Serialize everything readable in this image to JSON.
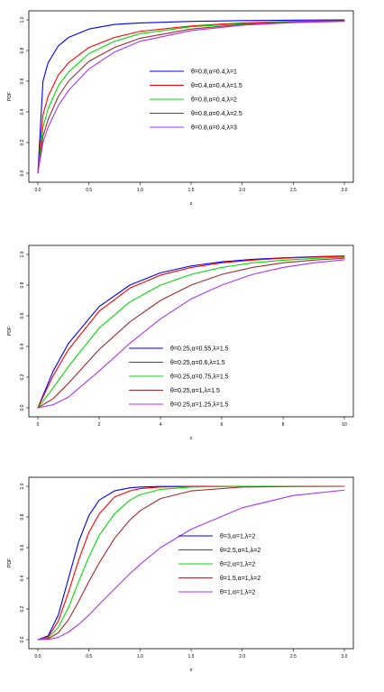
{
  "chart_data": [
    {
      "type": "line",
      "title": "",
      "xlabel": "z",
      "ylabel": "PDF",
      "xlim": [
        0,
        3
      ],
      "ylim": [
        0,
        1
      ],
      "xticks": [
        "0.0",
        "0.5",
        "1.0",
        "1.5",
        "2.0",
        "2.5",
        "3.0"
      ],
      "yticks": [
        "0.0",
        "0.2",
        "0.4",
        "0.6",
        "0.8",
        "1.0"
      ],
      "legend_position": "center-right",
      "series": [
        {
          "name": "θ=0.8,α=0.4,λ=1",
          "color": "#0000ff",
          "x": [
            0,
            0.05,
            0.1,
            0.2,
            0.3,
            0.5,
            0.75,
            1.0,
            1.5,
            2.0,
            2.5,
            3.0
          ],
          "y": [
            0,
            0.6,
            0.72,
            0.83,
            0.885,
            0.94,
            0.97,
            0.98,
            0.99,
            0.995,
            0.998,
            1.0
          ]
        },
        {
          "name": "θ=0.4,α=0.4,λ=1.5",
          "color": "#ff0000",
          "x": [
            0,
            0.05,
            0.1,
            0.2,
            0.3,
            0.5,
            0.75,
            1.0,
            1.5,
            2.0,
            2.5,
            3.0
          ],
          "y": [
            0,
            0.38,
            0.5,
            0.64,
            0.72,
            0.82,
            0.885,
            0.925,
            0.96,
            0.98,
            0.99,
            0.995
          ]
        },
        {
          "name": "θ=0.8,α=0.4,λ=2",
          "color": "#00dd00",
          "x": [
            0,
            0.05,
            0.1,
            0.2,
            0.3,
            0.5,
            0.75,
            1.0,
            1.5,
            2.0,
            2.5,
            3.0
          ],
          "y": [
            0,
            0.3,
            0.42,
            0.57,
            0.66,
            0.78,
            0.86,
            0.91,
            0.955,
            0.975,
            0.988,
            0.994
          ]
        },
        {
          "name": "θ=0.8,α=0.4,λ=2.5",
          "color": "#a52a2a",
          "x": [
            0,
            0.05,
            0.1,
            0.2,
            0.3,
            0.5,
            0.75,
            1.0,
            1.5,
            2.0,
            2.5,
            3.0
          ],
          "y": [
            0,
            0.24,
            0.35,
            0.5,
            0.6,
            0.73,
            0.82,
            0.88,
            0.94,
            0.97,
            0.985,
            0.993
          ]
        },
        {
          "name": "θ=0.8,α=0.4,λ=3",
          "color": "#aa33ff",
          "x": [
            0,
            0.05,
            0.1,
            0.2,
            0.3,
            0.5,
            0.75,
            1.0,
            1.5,
            2.0,
            2.5,
            3.0
          ],
          "y": [
            0,
            0.2,
            0.3,
            0.44,
            0.54,
            0.68,
            0.79,
            0.86,
            0.93,
            0.965,
            0.982,
            0.99
          ]
        }
      ]
    },
    {
      "type": "line",
      "title": "",
      "xlabel": "z",
      "ylabel": "PDF",
      "xlim": [
        0,
        10
      ],
      "ylim": [
        0,
        1
      ],
      "xticks": [
        "0",
        "2",
        "4",
        "6",
        "8",
        "10"
      ],
      "yticks": [
        "0.0",
        "0.2",
        "0.4",
        "0.6",
        "0.8",
        "1.0"
      ],
      "legend_position": "bottom-center",
      "series": [
        {
          "name": "θ=0.25,α=0.55,λ=1.5",
          "color": "#0000ff",
          "x": [
            0,
            0.5,
            1,
            2,
            3,
            4,
            5,
            6,
            7,
            8,
            9,
            10
          ],
          "y": [
            0,
            0.24,
            0.42,
            0.66,
            0.8,
            0.88,
            0.925,
            0.952,
            0.968,
            0.978,
            0.985,
            0.99
          ]
        },
        {
          "name": "θ=0.25,α=0.6,λ=1.5",
          "color": "#ff0000",
          "x": [
            0,
            0.5,
            1,
            2,
            3,
            4,
            5,
            6,
            7,
            8,
            9,
            10
          ],
          "y": [
            0,
            0.21,
            0.38,
            0.63,
            0.78,
            0.865,
            0.915,
            0.945,
            0.963,
            0.975,
            0.983,
            0.988
          ]
        },
        {
          "name": "θ=0.25,α=0.75,λ=1.5",
          "color": "#00dd00",
          "x": [
            0,
            0.5,
            1,
            2,
            3,
            4,
            5,
            6,
            7,
            8,
            9,
            10
          ],
          "y": [
            0,
            0.13,
            0.27,
            0.52,
            0.69,
            0.8,
            0.87,
            0.915,
            0.945,
            0.962,
            0.974,
            0.982
          ]
        },
        {
          "name": "θ=0.25,α=1,λ=1.5",
          "color": "#a52a2a",
          "x": [
            0,
            0.5,
            1,
            2,
            3,
            4,
            5,
            6,
            7,
            8,
            9,
            10
          ],
          "y": [
            0,
            0.06,
            0.16,
            0.38,
            0.56,
            0.7,
            0.8,
            0.87,
            0.915,
            0.945,
            0.963,
            0.975
          ]
        },
        {
          "name": "θ=0.25,α=1.25,λ=1.5",
          "color": "#aa33ff",
          "x": [
            0,
            0.5,
            1,
            2,
            3,
            4,
            5,
            6,
            7,
            8,
            9,
            10
          ],
          "y": [
            0,
            0.02,
            0.07,
            0.24,
            0.42,
            0.58,
            0.71,
            0.8,
            0.87,
            0.915,
            0.945,
            0.965
          ]
        }
      ]
    },
    {
      "type": "line",
      "title": "",
      "xlabel": "z",
      "ylabel": "PDF",
      "xlim": [
        0,
        3
      ],
      "ylim": [
        0,
        1
      ],
      "xticks": [
        "0.0",
        "0.5",
        "1.0",
        "1.5",
        "2.0",
        "2.5",
        "3.0"
      ],
      "yticks": [
        "0.0",
        "0.2",
        "0.4",
        "0.6",
        "0.8",
        "1.0"
      ],
      "legend_position": "center-right",
      "series": [
        {
          "name": "θ=3,α=1,λ=2",
          "color": "#0000ff",
          "x": [
            0,
            0.1,
            0.2,
            0.3,
            0.4,
            0.5,
            0.6,
            0.75,
            0.9,
            1.0,
            1.2,
            1.5,
            2.0,
            2.5,
            3.0
          ],
          "y": [
            0,
            0.025,
            0.16,
            0.4,
            0.64,
            0.81,
            0.91,
            0.97,
            0.99,
            0.995,
            0.999,
            1.0,
            1.0,
            1.0,
            1.0
          ]
        },
        {
          "name": "θ=2.5,α=1,λ=2",
          "color": "#ff0000",
          "x": [
            0,
            0.1,
            0.2,
            0.3,
            0.4,
            0.5,
            0.6,
            0.75,
            0.9,
            1.0,
            1.2,
            1.5,
            2.0,
            2.5,
            3.0
          ],
          "y": [
            0,
            0.018,
            0.12,
            0.31,
            0.52,
            0.7,
            0.82,
            0.93,
            0.97,
            0.985,
            0.995,
            0.999,
            1.0,
            1.0,
            1.0
          ]
        },
        {
          "name": "θ=2,α=1,λ=2",
          "color": "#00dd00",
          "x": [
            0,
            0.1,
            0.2,
            0.3,
            0.4,
            0.5,
            0.6,
            0.75,
            0.9,
            1.0,
            1.2,
            1.5,
            2.0,
            2.5,
            3.0
          ],
          "y": [
            0,
            0.012,
            0.08,
            0.21,
            0.38,
            0.54,
            0.68,
            0.82,
            0.91,
            0.945,
            0.98,
            0.995,
            1.0,
            1.0,
            1.0
          ]
        },
        {
          "name": "θ=1.5,α=1,λ=2",
          "color": "#a52a2a",
          "x": [
            0,
            0.1,
            0.2,
            0.3,
            0.4,
            0.5,
            0.6,
            0.75,
            0.9,
            1.0,
            1.2,
            1.5,
            2.0,
            2.5,
            3.0
          ],
          "y": [
            0,
            0.006,
            0.045,
            0.13,
            0.25,
            0.38,
            0.5,
            0.66,
            0.78,
            0.84,
            0.92,
            0.97,
            0.995,
            0.999,
            1.0
          ]
        },
        {
          "name": "θ=1,α=1,λ=2",
          "color": "#aa33ff",
          "x": [
            0,
            0.1,
            0.2,
            0.3,
            0.4,
            0.5,
            0.6,
            0.75,
            0.9,
            1.0,
            1.2,
            1.5,
            2.0,
            2.5,
            3.0
          ],
          "y": [
            0,
            0.002,
            0.015,
            0.05,
            0.1,
            0.16,
            0.23,
            0.33,
            0.43,
            0.49,
            0.6,
            0.72,
            0.86,
            0.94,
            0.975
          ]
        }
      ]
    }
  ]
}
